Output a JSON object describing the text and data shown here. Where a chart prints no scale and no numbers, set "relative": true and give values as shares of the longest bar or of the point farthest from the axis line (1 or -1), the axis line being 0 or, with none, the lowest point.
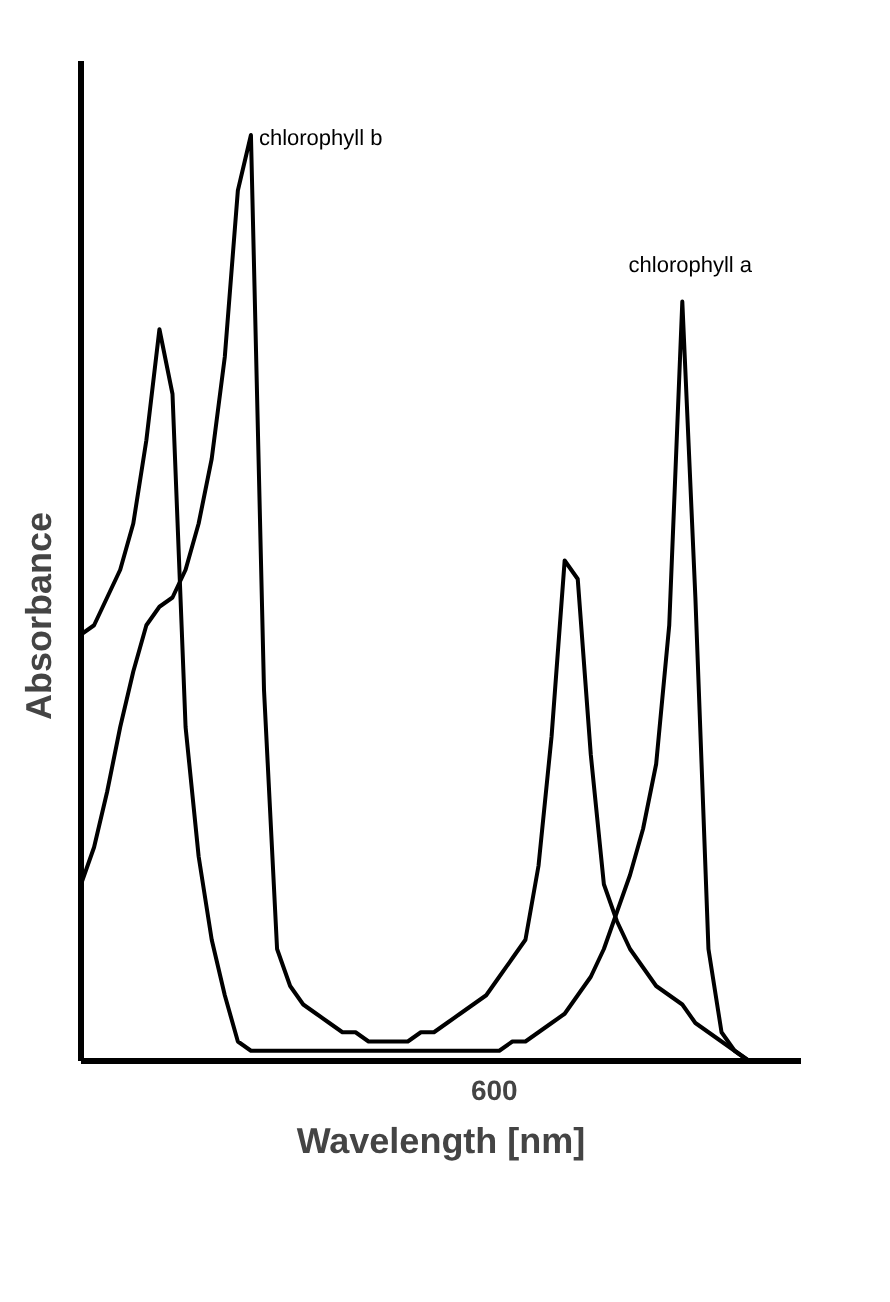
{
  "chart_data": {
    "type": "line",
    "relative": true,
    "xlabel": "Wavelength [nm]",
    "ylabel": "Absorbance",
    "annotations": [
      "600"
    ],
    "grid": false,
    "marker": "none",
    "line_style": "solid",
    "categories": [
      null,
      null,
      null,
      null,
      null,
      null,
      null,
      null,
      null,
      null,
      null,
      null,
      null,
      null,
      null,
      null,
      null,
      null,
      null,
      null,
      null,
      null,
      null,
      null,
      null,
      null,
      null,
      null,
      null,
      null,
      null,
      null,
      null,
      null,
      null,
      null,
      null,
      null,
      null,
      null,
      null,
      null,
      null,
      null,
      null,
      null,
      null,
      null,
      null,
      null,
      null,
      null
    ],
    "series": [
      {
        "name": "chlorophyll a",
        "color": "#000000",
        "values": [
          0.46,
          0.47,
          0.5,
          0.53,
          0.58,
          0.67,
          0.79,
          0.72,
          0.36,
          0.22,
          0.13,
          0.07,
          0.02,
          0.01,
          0.01,
          0.01,
          0.01,
          0.01,
          0.01,
          0.01,
          0.01,
          0.01,
          0.01,
          0.01,
          0.01,
          0.01,
          0.01,
          0.01,
          0.01,
          0.01,
          0.01,
          0.01,
          0.01,
          0.02,
          0.02,
          0.03,
          0.04,
          0.05,
          0.07,
          0.09,
          0.12,
          0.16,
          0.2,
          0.25,
          0.32,
          0.47,
          0.82,
          0.5,
          0.12,
          0.03,
          0.01,
          0
        ]
      },
      {
        "name": "chlorophyll b",
        "color": "#000000",
        "values": [
          0.19,
          0.23,
          0.29,
          0.36,
          0.42,
          0.47,
          0.49,
          0.5,
          0.53,
          0.58,
          0.65,
          0.76,
          0.94,
          1,
          0.4,
          0.12,
          0.08,
          0.06,
          0.05,
          0.04,
          0.03,
          0.03,
          0.02,
          0.02,
          0.02,
          0.02,
          0.03,
          0.03,
          0.04,
          0.05,
          0.06,
          0.07,
          0.09,
          0.11,
          0.13,
          0.21,
          0.35,
          0.54,
          0.52,
          0.33,
          0.19,
          0.15,
          0.12,
          0.1,
          0.08,
          0.07,
          0.06,
          0.04,
          0.03,
          0.02,
          0.01,
          0
        ]
      }
    ]
  }
}
